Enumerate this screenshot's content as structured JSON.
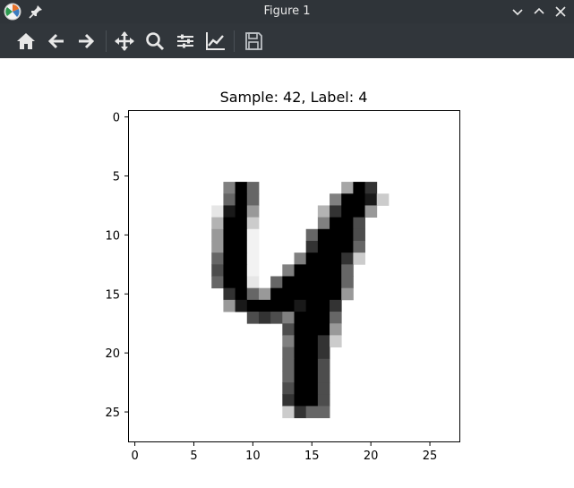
{
  "window": {
    "title": "Figure 1",
    "controls": [
      "chevron-down-icon",
      "chevron-up-icon",
      "close-icon"
    ]
  },
  "toolbar": {
    "tools": [
      {
        "name": "home-icon"
      },
      {
        "name": "back-arrow-icon"
      },
      {
        "name": "forward-arrow-icon"
      },
      {
        "name": "pan-icon"
      },
      {
        "name": "zoom-icon"
      },
      {
        "name": "configure-subplots-icon"
      },
      {
        "name": "edit-axes-icon"
      },
      {
        "name": "save-icon"
      }
    ]
  },
  "chart_data": {
    "type": "heatmap",
    "title": "Sample: 42, Label: 4",
    "colormap": "gray_r",
    "x_ticks": [
      0,
      5,
      10,
      15,
      20,
      25
    ],
    "y_ticks": [
      0,
      5,
      10,
      15,
      20,
      25
    ],
    "xlim": [
      -0.5,
      27.5
    ],
    "ylim": [
      27.5,
      -0.5
    ],
    "pixels": [
      [
        0,
        0,
        0,
        0,
        0,
        0,
        0,
        0,
        0,
        0,
        0,
        0,
        0,
        0,
        0,
        0,
        0,
        0,
        0,
        0,
        0,
        0,
        0,
        0,
        0,
        0,
        0,
        0
      ],
      [
        0,
        0,
        0,
        0,
        0,
        0,
        0,
        0,
        0,
        0,
        0,
        0,
        0,
        0,
        0,
        0,
        0,
        0,
        0,
        0,
        0,
        0,
        0,
        0,
        0,
        0,
        0,
        0
      ],
      [
        0,
        0,
        0,
        0,
        0,
        0,
        0,
        0,
        0,
        0,
        0,
        0,
        0,
        0,
        0,
        0,
        0,
        0,
        0,
        0,
        0,
        0,
        0,
        0,
        0,
        0,
        0,
        0
      ],
      [
        0,
        0,
        0,
        0,
        0,
        0,
        0,
        0,
        0,
        0,
        0,
        0,
        0,
        0,
        0,
        0,
        0,
        0,
        0,
        0,
        0,
        0,
        0,
        0,
        0,
        0,
        0,
        0
      ],
      [
        0,
        0,
        0,
        0,
        0,
        0,
        0,
        0,
        0,
        0,
        0,
        0,
        0,
        0,
        0,
        0,
        0,
        0,
        0,
        0,
        0,
        0,
        0,
        0,
        0,
        0,
        0,
        0
      ],
      [
        0,
        0,
        0,
        0,
        0,
        0,
        0,
        0,
        0,
        0,
        0,
        0,
        0,
        0,
        0,
        0,
        0,
        0,
        0,
        0,
        0,
        0,
        0,
        0,
        0,
        0,
        0,
        0
      ],
      [
        0,
        0,
        0,
        0,
        0,
        0,
        0,
        0,
        0.5,
        1,
        0.6,
        0,
        0,
        0,
        0,
        0,
        0,
        0,
        0.35,
        1,
        0.8,
        0,
        0,
        0,
        0,
        0,
        0,
        0
      ],
      [
        0,
        0,
        0,
        0,
        0,
        0,
        0,
        0,
        0.6,
        1,
        0.6,
        0,
        0,
        0,
        0,
        0,
        0,
        0.5,
        1,
        1,
        0.9,
        0.2,
        0,
        0,
        0,
        0,
        0,
        0
      ],
      [
        0,
        0,
        0,
        0,
        0,
        0,
        0,
        0.1,
        0.9,
        1,
        0.4,
        0,
        0,
        0,
        0,
        0,
        0.3,
        0.8,
        1,
        1,
        0.4,
        0,
        0,
        0,
        0,
        0,
        0,
        0
      ],
      [
        0,
        0,
        0,
        0,
        0,
        0,
        0,
        0.3,
        1,
        1,
        0.2,
        0,
        0,
        0,
        0,
        0,
        0.5,
        1,
        1,
        0.7,
        0,
        0,
        0,
        0,
        0,
        0,
        0,
        0
      ],
      [
        0,
        0,
        0,
        0,
        0,
        0,
        0,
        0.4,
        1,
        1,
        0.05,
        0,
        0,
        0,
        0,
        0.6,
        1,
        1,
        1,
        0.7,
        0,
        0,
        0,
        0,
        0,
        0,
        0,
        0
      ],
      [
        0,
        0,
        0,
        0,
        0,
        0,
        0,
        0.4,
        1,
        1,
        0.05,
        0,
        0,
        0,
        0,
        0.8,
        1,
        1,
        1,
        0.6,
        0,
        0,
        0,
        0,
        0,
        0,
        0,
        0
      ],
      [
        0,
        0,
        0,
        0,
        0,
        0,
        0,
        0.6,
        1,
        1,
        0.05,
        0,
        0,
        0,
        0.5,
        1,
        1,
        1,
        0.8,
        0.2,
        0,
        0,
        0,
        0,
        0,
        0,
        0,
        0
      ],
      [
        0,
        0,
        0,
        0,
        0,
        0,
        0,
        0.7,
        1,
        1,
        0.05,
        0,
        0,
        0.5,
        1,
        1,
        1,
        1,
        0.6,
        0,
        0,
        0,
        0,
        0,
        0,
        0,
        0,
        0
      ],
      [
        0,
        0,
        0,
        0,
        0,
        0,
        0,
        0.6,
        1,
        1,
        0.1,
        0,
        0.6,
        1,
        1,
        1,
        1,
        1,
        0.6,
        0,
        0,
        0,
        0,
        0,
        0,
        0,
        0,
        0
      ],
      [
        0,
        0,
        0,
        0,
        0,
        0,
        0,
        0,
        0.8,
        1,
        0.6,
        0.4,
        1,
        1,
        1,
        1,
        1,
        1,
        0.4,
        0,
        0,
        0,
        0,
        0,
        0,
        0,
        0,
        0
      ],
      [
        0,
        0,
        0,
        0,
        0,
        0,
        0,
        0,
        0.4,
        0.9,
        1,
        1,
        1,
        1,
        0.9,
        1,
        1,
        0.8,
        0,
        0,
        0,
        0,
        0,
        0,
        0,
        0,
        0,
        0
      ],
      [
        0,
        0,
        0,
        0,
        0,
        0,
        0,
        0,
        0,
        0,
        0.7,
        0.8,
        0.7,
        0.5,
        1,
        1,
        1,
        0.6,
        0,
        0,
        0,
        0,
        0,
        0,
        0,
        0,
        0,
        0
      ],
      [
        0,
        0,
        0,
        0,
        0,
        0,
        0,
        0,
        0,
        0,
        0,
        0,
        0,
        0.7,
        1,
        1,
        1,
        0.4,
        0,
        0,
        0,
        0,
        0,
        0,
        0,
        0,
        0,
        0
      ],
      [
        0,
        0,
        0,
        0,
        0,
        0,
        0,
        0,
        0,
        0,
        0,
        0,
        0,
        0.5,
        1,
        1,
        0.8,
        0.2,
        0,
        0,
        0,
        0,
        0,
        0,
        0,
        0,
        0,
        0
      ],
      [
        0,
        0,
        0,
        0,
        0,
        0,
        0,
        0,
        0,
        0,
        0,
        0,
        0,
        0.6,
        1,
        1,
        0.8,
        0,
        0,
        0,
        0,
        0,
        0,
        0,
        0,
        0,
        0,
        0
      ],
      [
        0,
        0,
        0,
        0,
        0,
        0,
        0,
        0,
        0,
        0,
        0,
        0,
        0,
        0.6,
        1,
        1,
        0.7,
        0,
        0,
        0,
        0,
        0,
        0,
        0,
        0,
        0,
        0,
        0
      ],
      [
        0,
        0,
        0,
        0,
        0,
        0,
        0,
        0,
        0,
        0,
        0,
        0,
        0,
        0.6,
        1,
        1,
        0.7,
        0,
        0,
        0,
        0,
        0,
        0,
        0,
        0,
        0,
        0,
        0
      ],
      [
        0,
        0,
        0,
        0,
        0,
        0,
        0,
        0,
        0,
        0,
        0,
        0,
        0,
        0.7,
        1,
        1,
        0.7,
        0,
        0,
        0,
        0,
        0,
        0,
        0,
        0,
        0,
        0,
        0
      ],
      [
        0,
        0,
        0,
        0,
        0,
        0,
        0,
        0,
        0,
        0,
        0,
        0,
        0,
        0.8,
        1,
        1,
        0.7,
        0,
        0,
        0,
        0,
        0,
        0,
        0,
        0,
        0,
        0,
        0
      ],
      [
        0,
        0,
        0,
        0,
        0,
        0,
        0,
        0,
        0,
        0,
        0,
        0,
        0,
        0.2,
        0.8,
        0.6,
        0.6,
        0,
        0,
        0,
        0,
        0,
        0,
        0,
        0,
        0,
        0,
        0
      ],
      [
        0,
        0,
        0,
        0,
        0,
        0,
        0,
        0,
        0,
        0,
        0,
        0,
        0,
        0,
        0,
        0,
        0,
        0,
        0,
        0,
        0,
        0,
        0,
        0,
        0,
        0,
        0,
        0
      ],
      [
        0,
        0,
        0,
        0,
        0,
        0,
        0,
        0,
        0,
        0,
        0,
        0,
        0,
        0,
        0,
        0,
        0,
        0,
        0,
        0,
        0,
        0,
        0,
        0,
        0,
        0,
        0,
        0
      ]
    ]
  }
}
